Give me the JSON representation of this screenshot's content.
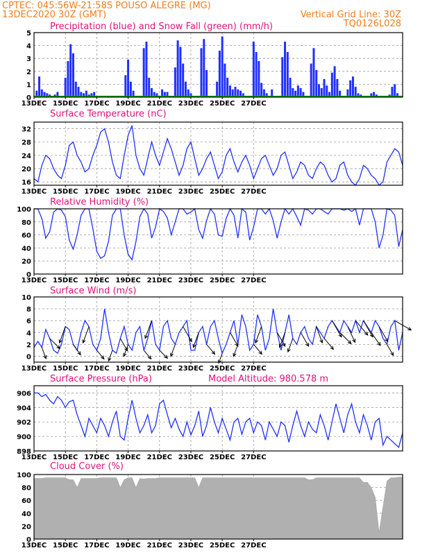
{
  "header": {
    "left_line1": "CPTEC:   045:56W-21:58S  POUSO ALEGRE (MG)",
    "left_line2": "13DEC2020 30Z (GMT)",
    "right_line1": "Vertical Grid Line: 30Z",
    "right_line2": "TQ0126L028"
  },
  "colors": {
    "header": "#f07d1a",
    "title": "#e0107a",
    "series": "#2030ff",
    "snow": "#00a000",
    "cloud": "#b0b0b0"
  },
  "x_axis": {
    "tick_labels": [
      "13DEC",
      "15DEC",
      "17DEC",
      "19DEC",
      "21DEC",
      "23DEC",
      "25DEC",
      "27DEC"
    ]
  },
  "chart_data": [
    {
      "type": "bar",
      "title": "Precipitation (blue) and Snow Fall (green) (mm/h)",
      "ylim": [
        0,
        5
      ],
      "yticks": [
        0,
        1,
        2,
        3,
        4,
        5
      ],
      "grid": true,
      "series": [
        {
          "name": "Precipitation",
          "x_hours": [
            4,
            8,
            12,
            16,
            20,
            24,
            28,
            32,
            36,
            48,
            52,
            56,
            60,
            64,
            68,
            72,
            76,
            80,
            84,
            88,
            92,
            140,
            144,
            148,
            152,
            168,
            172,
            176,
            180,
            184,
            188,
            196,
            200,
            204,
            216,
            220,
            224,
            228,
            232,
            236,
            240,
            256,
            260,
            264,
            280,
            284,
            288,
            292,
            296,
            300,
            304,
            308,
            312,
            316,
            320,
            336,
            340,
            344,
            348,
            352,
            356,
            364,
            380,
            384,
            388,
            392,
            396,
            400,
            404,
            408,
            412,
            424,
            428,
            432,
            436,
            440,
            444,
            448,
            452,
            456,
            460,
            464,
            468,
            480,
            484,
            488,
            492,
            496,
            500,
            504,
            516,
            520,
            524,
            528,
            544,
            548,
            552,
            556,
            560
          ],
          "values": [
            0.5,
            1.6,
            0.6,
            0.4,
            0.3,
            0.2,
            0.1,
            0.2,
            0.4,
            1.5,
            2.8,
            4.1,
            3.4,
            1.2,
            0.8,
            0.4,
            0.3,
            0.5,
            0.2,
            0.3,
            0.4,
            1.7,
            2.9,
            1.2,
            0.5,
            3.8,
            4.3,
            1.5,
            0.7,
            0.4,
            0.3,
            0.6,
            0.4,
            0.4,
            2.3,
            4.4,
            3.9,
            2.6,
            1.2,
            0.6,
            0.3,
            3.8,
            4.5,
            2.1,
            1.2,
            3.6,
            4.7,
            2.6,
            1.5,
            0.9,
            0.6,
            0.8,
            0.6,
            0.5,
            0.3,
            4.3,
            3.5,
            2.8,
            1.1,
            0.6,
            0.3,
            0.6,
            3.1,
            4.3,
            3.5,
            1.5,
            0.7,
            0.5,
            0.9,
            0.7,
            0.4,
            2.6,
            3.8,
            2.1,
            1.0,
            0.7,
            1.4,
            0.9,
            0.4,
            1.9,
            2.4,
            1.4,
            0.5,
            0.6,
            1.3,
            1.6,
            0.8,
            0.3,
            0.2,
            0.1,
            0.3,
            0.4,
            0.2,
            0.1,
            0.2,
            0.8,
            1.0,
            0.3,
            0.1
          ]
        },
        {
          "name": "Snow Fall",
          "values_all": 0
        }
      ]
    },
    {
      "type": "line",
      "title": "Surface Temperature (nC)",
      "ylim": [
        15,
        34
      ],
      "yticks": [
        16,
        20,
        24,
        28,
        32
      ],
      "grid": true,
      "x_hours": [
        0,
        6,
        12,
        18,
        24,
        30,
        36,
        42,
        48,
        54,
        60,
        66,
        72,
        78,
        84,
        90,
        96,
        102,
        108,
        114,
        120,
        126,
        132,
        138,
        144,
        150,
        156,
        162,
        168,
        174,
        180,
        186,
        192,
        198,
        204,
        210,
        216,
        222,
        228,
        234,
        240,
        246,
        252,
        258,
        264,
        270,
        276,
        282,
        288,
        294,
        300,
        306,
        312,
        318,
        324,
        330,
        336,
        342,
        348,
        354,
        360,
        366,
        372,
        378,
        384,
        390,
        396,
        402,
        408,
        414,
        420,
        426,
        432,
        438,
        444,
        450,
        456,
        462,
        468,
        474,
        480,
        486,
        492,
        498,
        504,
        510,
        516,
        522,
        528,
        534,
        540,
        546,
        552,
        558,
        564
      ],
      "values": [
        17,
        16,
        21,
        24,
        23,
        20,
        18,
        17,
        21,
        27,
        28,
        24,
        22,
        19,
        20,
        24,
        27,
        31,
        32,
        28,
        22,
        18,
        17,
        24,
        30,
        33,
        24,
        20,
        18,
        23,
        28,
        24,
        21,
        25,
        29,
        26,
        22,
        18,
        21,
        26,
        28,
        23,
        18,
        20,
        23,
        25,
        21,
        17,
        19,
        24,
        26,
        22,
        19,
        22,
        24,
        21,
        17,
        20,
        23,
        24,
        21,
        18,
        20,
        24,
        25,
        21,
        17,
        19,
        22,
        21,
        18,
        17,
        20,
        22,
        21,
        18,
        16,
        17,
        21,
        22,
        18,
        16,
        15,
        17,
        21,
        20,
        18,
        17,
        15,
        16,
        22,
        24,
        26,
        25,
        21
      ]
    },
    {
      "type": "line",
      "title": "Relative Humidity (%)",
      "ylim": [
        0,
        100
      ],
      "yticks": [
        0,
        20,
        40,
        60,
        80,
        100
      ],
      "grid": true,
      "x_hours": [
        0,
        6,
        12,
        18,
        24,
        30,
        36,
        42,
        48,
        54,
        60,
        66,
        72,
        78,
        84,
        90,
        96,
        102,
        108,
        114,
        120,
        126,
        132,
        138,
        144,
        150,
        156,
        162,
        168,
        174,
        180,
        186,
        192,
        198,
        204,
        210,
        216,
        222,
        228,
        234,
        240,
        246,
        252,
        258,
        264,
        270,
        276,
        282,
        288,
        294,
        300,
        306,
        312,
        318,
        324,
        330,
        336,
        342,
        348,
        354,
        360,
        366,
        372,
        378,
        384,
        390,
        396,
        402,
        408,
        414,
        420,
        426,
        432,
        438,
        444,
        450,
        456,
        462,
        468,
        474,
        480,
        486,
        492,
        498,
        504,
        510,
        516,
        522,
        528,
        534,
        540,
        546,
        552,
        558,
        564
      ],
      "values": [
        100,
        100,
        85,
        55,
        65,
        95,
        100,
        98,
        88,
        52,
        38,
        60,
        90,
        100,
        100,
        70,
        35,
        24,
        28,
        50,
        90,
        100,
        100,
        60,
        30,
        22,
        50,
        88,
        100,
        92,
        55,
        72,
        100,
        96,
        86,
        60,
        80,
        100,
        100,
        92,
        95,
        100,
        68,
        55,
        82,
        100,
        92,
        60,
        58,
        85,
        100,
        90,
        55,
        100,
        95,
        52,
        72,
        100,
        100,
        92,
        100,
        82,
        55,
        80,
        100,
        92,
        100,
        88,
        75,
        100,
        98,
        92,
        100,
        100,
        96,
        92,
        100,
        100,
        100,
        98,
        100,
        96,
        100,
        75,
        100,
        100,
        100,
        80,
        40,
        60,
        100,
        98,
        90,
        42,
        68
      ]
    },
    {
      "type": "line",
      "title": "Surface Wind (m/s)",
      "ylim": [
        -1,
        10
      ],
      "yticks": [
        0,
        2,
        4,
        6,
        8,
        10
      ],
      "grid": true,
      "x_hours": [
        0,
        6,
        12,
        18,
        24,
        30,
        36,
        42,
        48,
        54,
        60,
        66,
        72,
        78,
        84,
        90,
        96,
        102,
        108,
        114,
        120,
        126,
        132,
        138,
        144,
        150,
        156,
        162,
        168,
        174,
        180,
        186,
        192,
        198,
        204,
        210,
        216,
        222,
        228,
        234,
        240,
        246,
        252,
        258,
        264,
        270,
        276,
        282,
        288,
        294,
        300,
        306,
        312,
        318,
        324,
        330,
        336,
        342,
        348,
        354,
        360,
        366,
        372,
        378,
        384,
        390,
        396,
        402,
        408,
        414,
        420,
        426,
        432,
        438,
        444,
        450,
        456,
        462,
        468,
        474,
        480,
        486,
        492,
        498,
        504,
        510,
        516,
        522,
        528,
        534,
        540,
        546,
        552,
        558,
        564
      ],
      "values": [
        1.5,
        2.5,
        1.5,
        4.5,
        3,
        1,
        0.5,
        2,
        5,
        4.5,
        2,
        1,
        4,
        6,
        5,
        2,
        1,
        3,
        8,
        4,
        1,
        0.5,
        3,
        5,
        2,
        1,
        4,
        5,
        1,
        3,
        6,
        2,
        1,
        5,
        6,
        3,
        2,
        4,
        5,
        6,
        1,
        1,
        4,
        5,
        2,
        5,
        6,
        3,
        0.5,
        2,
        4,
        6,
        2,
        7,
        5,
        1,
        2,
        7,
        5,
        1,
        3,
        8,
        4,
        1,
        4,
        7,
        3,
        2,
        4,
        5,
        3,
        2,
        5,
        4,
        3,
        5,
        6,
        5,
        4,
        6,
        5,
        4,
        6,
        4,
        6,
        5,
        4,
        6,
        5,
        3,
        2,
        5,
        6,
        1,
        4
      ],
      "arrow_hours": [
        12,
        24,
        48,
        60,
        84,
        96,
        120,
        132,
        144,
        168,
        180,
        192,
        216,
        228,
        252,
        264,
        288,
        300,
        312,
        336,
        348,
        372,
        384,
        396,
        408,
        432,
        444,
        456,
        468,
        480,
        492,
        504,
        516,
        528,
        540,
        552
      ],
      "arrow_dirs_deg": [
        160,
        135,
        200,
        145,
        200,
        140,
        200,
        150,
        200,
        140,
        200,
        135,
        200,
        150,
        200,
        140,
        200,
        150,
        200,
        140,
        200,
        150,
        200,
        200,
        150,
        160,
        140,
        150,
        135,
        155,
        140,
        150,
        145,
        150,
        150,
        120
      ]
    },
    {
      "type": "line",
      "title": "Surface Pressure (hPa)",
      "subtitle": "Model Altitude: 980.578 m",
      "ylim": [
        898,
        907
      ],
      "yticks": [
        898,
        900,
        902,
        904,
        906
      ],
      "grid": true,
      "x_hours": [
        0,
        6,
        12,
        18,
        24,
        30,
        36,
        42,
        48,
        54,
        60,
        66,
        72,
        78,
        84,
        90,
        96,
        102,
        108,
        114,
        120,
        126,
        132,
        138,
        144,
        150,
        156,
        162,
        168,
        174,
        180,
        186,
        192,
        198,
        204,
        210,
        216,
        222,
        228,
        234,
        240,
        246,
        252,
        258,
        264,
        270,
        276,
        282,
        288,
        294,
        300,
        306,
        312,
        318,
        324,
        330,
        336,
        342,
        348,
        354,
        360,
        366,
        372,
        378,
        384,
        390,
        396,
        402,
        408,
        414,
        420,
        426,
        432,
        438,
        444,
        450,
        456,
        462,
        468,
        474,
        480,
        486,
        492,
        498,
        504,
        510,
        516,
        522,
        528,
        534,
        540,
        546,
        552,
        558,
        564
      ],
      "values": [
        906,
        906,
        905.5,
        905.8,
        905,
        904.5,
        905.5,
        905,
        904,
        904.8,
        905,
        903,
        901.5,
        900,
        902.5,
        901.5,
        900.5,
        902.5,
        901.5,
        900,
        902,
        903.5,
        900,
        899.5,
        902.5,
        905,
        902.5,
        900.5,
        901.5,
        903,
        900.5,
        901.5,
        904.5,
        905,
        903,
        901.2,
        902.5,
        901,
        900,
        902,
        900.2,
        901.5,
        903.5,
        900,
        901.5,
        904,
        902,
        900.5,
        902.5,
        901,
        899.5,
        902,
        902.5,
        900.3,
        902,
        902.5,
        900.5,
        902,
        901.5,
        899.5,
        902,
        901,
        900,
        902,
        901.5,
        899.2,
        901.5,
        903.5,
        901.5,
        900,
        902,
        901,
        900.5,
        903,
        901.5,
        899.5,
        902,
        904.5,
        902.5,
        900.5,
        903,
        904.5,
        902,
        900.5,
        903,
        901.5,
        899.5,
        902,
        902.5,
        898.8,
        900,
        899.5,
        899,
        898.5,
        900.5
      ]
    },
    {
      "type": "area",
      "title": "Cloud Cover (%)",
      "ylim": [
        0,
        100
      ],
      "yticks": [
        0,
        20,
        40,
        60,
        80,
        100
      ],
      "grid": true,
      "x_hours": [
        0,
        6,
        12,
        18,
        24,
        30,
        36,
        42,
        48,
        54,
        60,
        66,
        72,
        78,
        84,
        90,
        96,
        102,
        108,
        114,
        120,
        126,
        132,
        138,
        144,
        150,
        156,
        162,
        168,
        174,
        180,
        186,
        192,
        198,
        204,
        210,
        216,
        222,
        228,
        234,
        240,
        246,
        252,
        258,
        264,
        270,
        276,
        282,
        288,
        294,
        300,
        306,
        312,
        318,
        324,
        330,
        336,
        342,
        348,
        354,
        360,
        366,
        372,
        378,
        384,
        390,
        396,
        402,
        408,
        414,
        420,
        426,
        432,
        438,
        444,
        450,
        456,
        462,
        468,
        474,
        480,
        486,
        492,
        498,
        504,
        510,
        516,
        522,
        528,
        534,
        540,
        546,
        552,
        558,
        564
      ],
      "values": [
        94,
        94,
        94,
        95,
        95,
        95,
        95,
        95,
        95,
        92,
        92,
        80,
        94,
        94,
        94,
        94,
        94,
        95,
        95,
        95,
        95,
        95,
        80,
        92,
        95,
        95,
        80,
        94,
        93,
        94,
        94,
        94,
        95,
        95,
        95,
        95,
        95,
        95,
        95,
        95,
        95,
        95,
        80,
        95,
        95,
        95,
        95,
        95,
        95,
        95,
        95,
        95,
        95,
        95,
        95,
        95,
        95,
        95,
        95,
        95,
        95,
        95,
        95,
        95,
        95,
        95,
        95,
        95,
        95,
        95,
        92,
        92,
        95,
        95,
        95,
        95,
        95,
        95,
        95,
        95,
        95,
        95,
        95,
        95,
        88,
        88,
        80,
        65,
        10,
        50,
        90,
        95,
        95,
        96,
        96
      ]
    }
  ]
}
